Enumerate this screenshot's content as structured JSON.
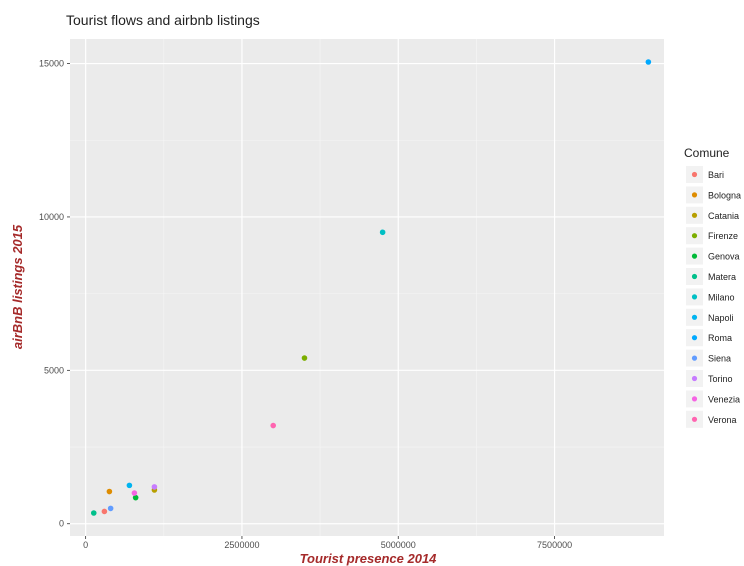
{
  "chart_data": {
    "type": "scatter",
    "title": "Tourist flows and airbnb listings",
    "xlabel": "Tourist presence 2014",
    "ylabel": "airBnB listings 2015",
    "xlim": [
      -250000,
      9250000
    ],
    "ylim": [
      -400,
      15800
    ],
    "x_ticks": [
      0,
      2500000,
      5000000,
      7500000
    ],
    "x_tick_labels": [
      "0",
      "2500000",
      "5000000",
      "7500000"
    ],
    "y_ticks": [
      0,
      5000,
      10000,
      15000
    ],
    "y_tick_labels": [
      "0",
      "5000",
      "10000",
      "15000"
    ],
    "grid": true,
    "legend_title": "Comune",
    "legend_position": "right",
    "axis_title_color": "#a52a2a",
    "panel_color": "#ebebeb",
    "series": [
      {
        "name": "Bari",
        "color": "#f8766d",
        "x": 300000,
        "y": 400
      },
      {
        "name": "Bologna",
        "color": "#de8c00",
        "x": 380000,
        "y": 1050
      },
      {
        "name": "Catania",
        "color": "#b79f00",
        "x": 1100000,
        "y": 1100
      },
      {
        "name": "Firenze",
        "color": "#7cae00",
        "x": 3500000,
        "y": 5400
      },
      {
        "name": "Genova",
        "color": "#00ba38",
        "x": 800000,
        "y": 850
      },
      {
        "name": "Matera",
        "color": "#00c08b",
        "x": 130000,
        "y": 350
      },
      {
        "name": "Milano",
        "color": "#00bfc4",
        "x": 4750000,
        "y": 9500
      },
      {
        "name": "Napoli",
        "color": "#00b4f0",
        "x": 700000,
        "y": 1250
      },
      {
        "name": "Roma",
        "color": "#00a9ff",
        "x": 9000000,
        "y": 15050
      },
      {
        "name": "Siena",
        "color": "#619cff",
        "x": 400000,
        "y": 500
      },
      {
        "name": "Torino",
        "color": "#c77cff",
        "x": 1100000,
        "y": 1200
      },
      {
        "name": "Venezia",
        "color": "#f564e3",
        "x": 780000,
        "y": 1000
      },
      {
        "name": "Verona",
        "color": "#ff64b0",
        "x": 3000000,
        "y": 3200
      }
    ]
  }
}
